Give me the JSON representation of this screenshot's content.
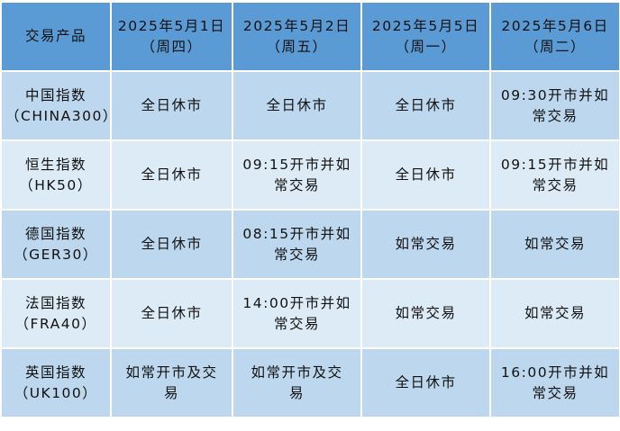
{
  "table": {
    "headers": [
      [
        "交易产品"
      ],
      [
        "2025年5月1日",
        "（周四）"
      ],
      [
        "2025年5月2日",
        "（周五）"
      ],
      [
        "2025年5月5日",
        "（周一）"
      ],
      [
        "2025年5月6日",
        "（周二）"
      ]
    ],
    "rows": [
      [
        [
          "中国指数",
          "（CHINA300）"
        ],
        [
          "全日休市"
        ],
        [
          "全日休市"
        ],
        [
          "全日休市"
        ],
        [
          "09:30开市并如",
          "常交易"
        ]
      ],
      [
        [
          "恒生指数",
          "（HK50）"
        ],
        [
          "全日休市"
        ],
        [
          "09:15开市并如",
          "常交易"
        ],
        [
          "全日休市"
        ],
        [
          "09:15开市并如",
          "常交易"
        ]
      ],
      [
        [
          "德国指数",
          "（GER30）"
        ],
        [
          "全日休市"
        ],
        [
          "08:15开市并如",
          "常交易"
        ],
        [
          "如常交易"
        ],
        [
          "如常交易"
        ]
      ],
      [
        [
          "法国指数",
          "（FRA40）"
        ],
        [
          "全日休市"
        ],
        [
          "14:00开市并如",
          "常交易"
        ],
        [
          "如常交易"
        ],
        [
          "如常交易"
        ]
      ],
      [
        [
          "英国指数",
          "（UK100）"
        ],
        [
          "如常开市及交",
          "易"
        ],
        [
          "如常开市及交",
          "易"
        ],
        [
          "全日休市"
        ],
        [
          "16:00开市并如",
          "常交易"
        ]
      ]
    ],
    "colors": {
      "header": "#5b9bd5",
      "row_odd": "#bdd7ee",
      "row_even": "#ddebf7"
    }
  }
}
